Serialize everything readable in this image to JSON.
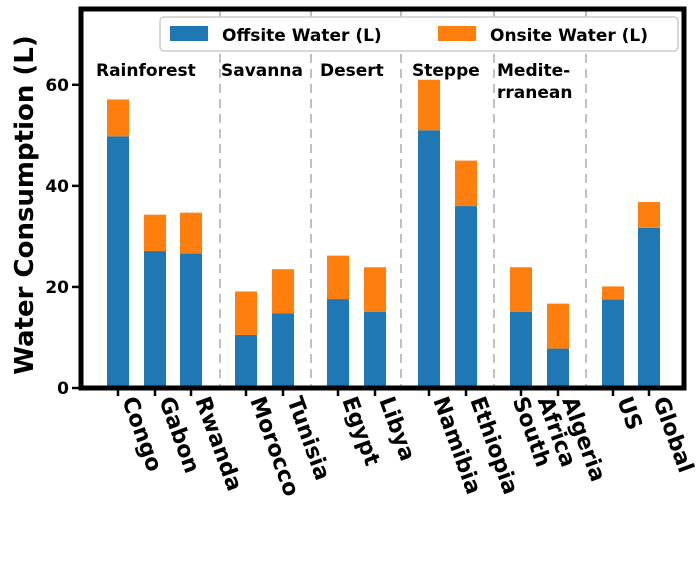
{
  "chart_data": {
    "type": "bar",
    "stacked": true,
    "ylabel": "Water Consumption (L)",
    "xlabel": "",
    "ylim": [
      0,
      75
    ],
    "yticks": [
      0,
      20,
      40,
      60
    ],
    "categories": [
      "Congo",
      "Gabon",
      "Rwanda",
      "Morocco",
      "Tunisia",
      "Egypt",
      "Libya",
      "Namibia",
      "Ethiopia",
      "South Africa",
      "Algeria",
      "US",
      "Global"
    ],
    "category_lines": [
      [
        "Congo"
      ],
      [
        "Gabon"
      ],
      [
        "Rwanda"
      ],
      [
        "Morocco"
      ],
      [
        "Tunisia"
      ],
      [
        "Egypt"
      ],
      [
        "Libya"
      ],
      [
        "Namibia"
      ],
      [
        "Ethiopia"
      ],
      [
        "South",
        "Africa"
      ],
      [
        "Algeria"
      ],
      [
        "US"
      ],
      [
        "Global"
      ]
    ],
    "series": [
      {
        "name": "Offsite Water (L)",
        "color": "#1f77b4",
        "values": [
          49.8,
          27.1,
          26.6,
          10.5,
          14.8,
          17.6,
          15.1,
          51.0,
          36.0,
          15.1,
          7.8,
          17.5,
          31.7
        ]
      },
      {
        "name": "Onsite Water (L)",
        "color": "#ff7f0e",
        "values": [
          7.3,
          7.2,
          8.1,
          8.6,
          8.7,
          8.6,
          8.8,
          10.0,
          9.0,
          8.8,
          8.9,
          2.6,
          5.1
        ]
      }
    ],
    "groups": [
      {
        "label_lines": [
          "Rainforest"
        ]
      },
      {
        "label_lines": [
          "Savanna"
        ]
      },
      {
        "label_lines": [
          "Desert"
        ]
      },
      {
        "label_lines": [
          "Steppe"
        ]
      },
      {
        "label_lines": [
          "Medite-",
          "rranean"
        ]
      }
    ],
    "legend_position": "top-right"
  }
}
